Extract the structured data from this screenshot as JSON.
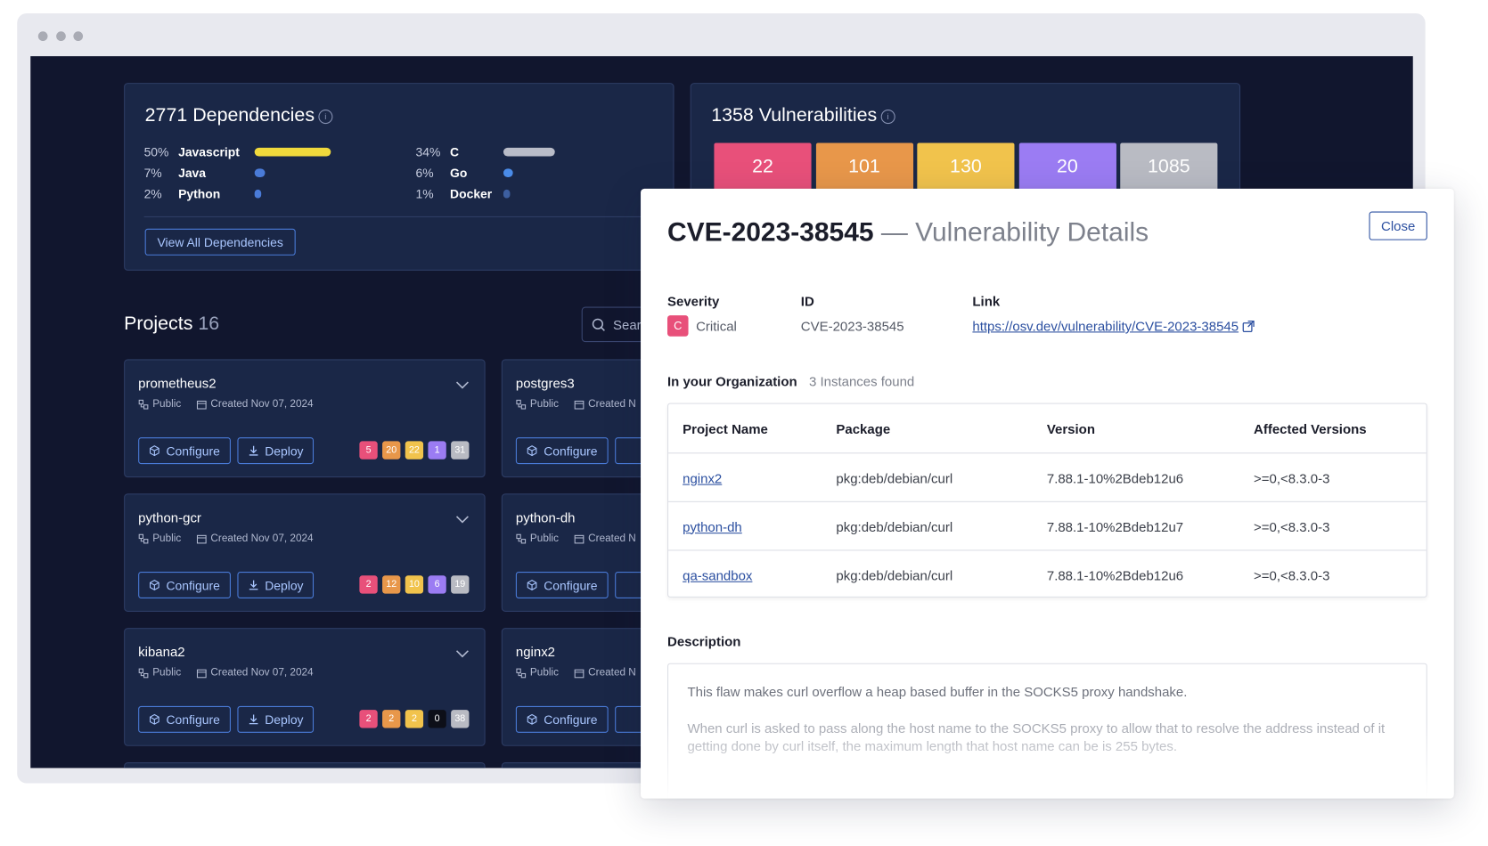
{
  "dependencies": {
    "count": 2771,
    "title": "Dependencies",
    "languages": [
      {
        "share": {
          "value": 50,
          "label": "50%"
        },
        "name": "Javascript",
        "color": "#f0d93c"
      },
      {
        "share": {
          "value": 7,
          "label": "7%"
        },
        "name": "Java",
        "color": "#4a7bd8"
      },
      {
        "share": {
          "value": 2,
          "label": "2%"
        },
        "name": "Python",
        "color": "#4a7bd8"
      },
      {
        "share": {
          "value": 34,
          "label": "34%"
        },
        "name": "C",
        "color": "#b9bcc8"
      },
      {
        "share": {
          "value": 6,
          "label": "6%"
        },
        "name": "Go",
        "color": "#4a8be8"
      },
      {
        "share": {
          "value": 1,
          "label": "1%"
        },
        "name": "Docker",
        "color": "#3d5fa0"
      }
    ],
    "button": "View All Dependencies"
  },
  "vulnerabilities": {
    "count": 1358,
    "title": "Vulnerabilities",
    "severity_counts": [
      22,
      101,
      130,
      20,
      1085
    ],
    "severity_colors": [
      "#e8507a",
      "#e8974a",
      "#f1c34c",
      "#9b7cf3",
      "#b9bbc3"
    ]
  },
  "projects": {
    "title": "Projects",
    "count": 16,
    "search_placeholder": "Search",
    "items": [
      {
        "name": "prometheus2",
        "visibility": "Public",
        "created": "Created Nov 07, 2024",
        "configure": "Configure",
        "deploy": "Deploy",
        "counts": [
          5,
          20,
          22,
          1,
          31
        ]
      },
      {
        "name": "postgres3",
        "visibility": "Public",
        "created": "Created N",
        "configure": "Configure"
      },
      {
        "name": "python-gcr",
        "visibility": "Public",
        "created": "Created Nov 07, 2024",
        "configure": "Configure",
        "deploy": "Deploy",
        "counts": [
          2,
          12,
          10,
          6,
          19
        ]
      },
      {
        "name": "python-dh",
        "visibility": "Public",
        "created": "Created N",
        "configure": "Configure"
      },
      {
        "name": "kibana2",
        "visibility": "Public",
        "created": "Created Nov 07, 2024",
        "configure": "Configure",
        "deploy": "Deploy",
        "counts": [
          2,
          2,
          2,
          0,
          38
        ]
      },
      {
        "name": "nginx2",
        "visibility": "Public",
        "created": "Created N",
        "configure": "Configure"
      }
    ]
  },
  "modal": {
    "cve": "CVE-2023-38545",
    "subtitle": "— Vulnerability Details",
    "close": "Close",
    "severity_label": "Severity",
    "severity_badge": "C",
    "severity": "Critical",
    "id_label": "ID",
    "id": "CVE-2023-38545",
    "link_label": "Link",
    "link": "https://osv.dev/vulnerability/CVE-2023-38545",
    "org_label": "In your Organization",
    "org_count": "3 Instances found",
    "table": {
      "header": [
        "Project Name",
        "Package",
        "Version",
        "Affected Versions"
      ],
      "rows": [
        [
          "nginx2",
          "pkg:deb/debian/curl",
          "7.88.1-10%2Bdeb12u6",
          ">=0,<8.3.0-3"
        ],
        [
          "python-dh",
          "pkg:deb/debian/curl",
          "7.88.1-10%2Bdeb12u7",
          ">=0,<8.3.0-3"
        ],
        [
          "qa-sandbox",
          "pkg:deb/debian/curl",
          "7.88.1-10%2Bdeb12u6",
          ">=0,<8.3.0-3"
        ]
      ]
    },
    "description_label": "Description",
    "description": [
      "This flaw makes curl overflow a heap based buffer in the SOCKS5 proxy handshake.",
      "When curl is asked to pass along the host name to the SOCKS5 proxy to allow that to resolve the address instead of it getting done by curl itself, the maximum length that host name can be is 255 bytes."
    ]
  }
}
